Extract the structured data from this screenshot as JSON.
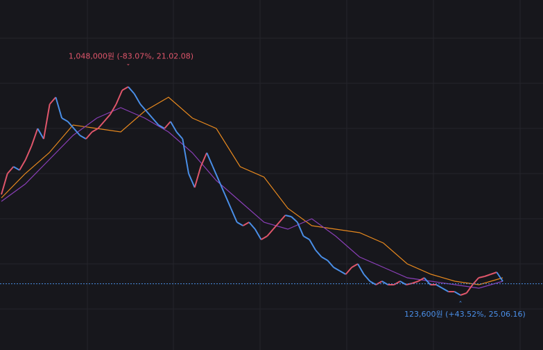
{
  "chart_data": {
    "type": "price",
    "ylim": [
      0,
      1400000
    ],
    "series": [
      {
        "name": "price",
        "up_color": "#e0566b",
        "down_color": "#4a8fe8",
        "values": [
          549100,
          635800,
          664700,
          650250,
          693600,
          751400,
          823650,
          780300,
          924800,
          953700,
          867000,
          852550,
          823650,
          794750,
          780300,
          809200,
          823650,
          852550,
          881450,
          924800,
          982600,
          997050,
          968150,
          924800,
          895900,
          867000,
          838100,
          823650,
          852550,
          809200,
          780300,
          635800,
          578000,
          664700,
          722500,
          664700,
          606900,
          549100,
          491300,
          433500,
          419050,
          433500,
          404600,
          361250,
          375700,
          404600,
          433500,
          462400,
          456620,
          433500,
          375700,
          361250,
          317900,
          289000,
          274550,
          245650,
          231200,
          216750,
          245650,
          260100,
          216750,
          187850,
          173400,
          187850,
          173400,
          173400,
          187850,
          173400,
          179180,
          187850,
          202300,
          173400,
          173400,
          158950,
          144500,
          144500,
          130050,
          138720,
          173400,
          202300,
          208080,
          216750,
          225420,
          187850
        ]
      },
      {
        "name": "ma-short",
        "color": "#e8891e",
        "values": [
          534650,
          635800,
          722500,
          838100,
          823650,
          809200,
          895900,
          953700,
          867000,
          823650,
          664700,
          621350,
          491300,
          419050,
          404600,
          390150,
          346800,
          260100,
          216750,
          187850,
          173400,
          202300
        ]
      },
      {
        "name": "ma-long",
        "color": "#8a3fb8",
        "values": [
          520200,
          592450,
          693600,
          794750,
          867000,
          910350,
          867000,
          809200,
          722500,
          606900,
          520200,
          433500,
          404600,
          447950,
          375700,
          289000,
          245650,
          202300,
          187850,
          173400,
          158950,
          187850
        ]
      }
    ],
    "current_price": 177400,
    "current_color": "#4a8fe8",
    "annotations": [
      {
        "label": "1,048,000원 (-83.07%, 21.02.08)",
        "value": 1048000,
        "color": "#e0566b"
      },
      {
        "label": "123,600원 (+43.52%, 25.06.16)",
        "value": 123600,
        "color": "#4a8fe8"
      }
    ]
  }
}
